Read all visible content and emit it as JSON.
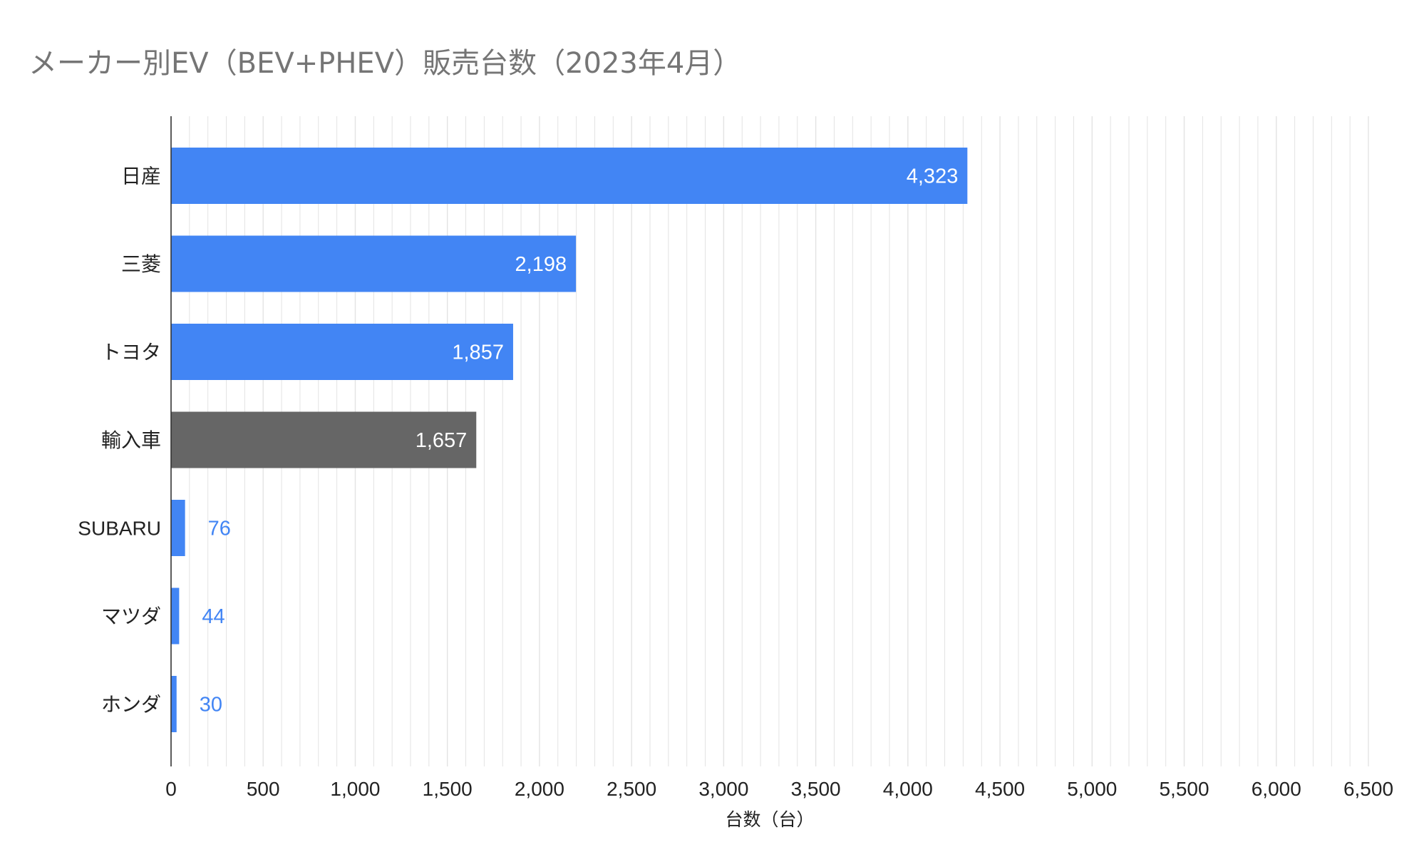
{
  "chart_data": {
    "type": "bar",
    "orientation": "horizontal",
    "title": "メーカー別EV（BEV+PHEV）販売台数（2023年4月）",
    "xlabel": "台数（台）",
    "ylabel": "",
    "xlim": [
      0,
      6500
    ],
    "x_ticks": [
      0,
      500,
      1000,
      1500,
      2000,
      2500,
      3000,
      3500,
      4000,
      4500,
      5000,
      5500,
      6000,
      6500
    ],
    "x_tick_labels": [
      "0",
      "500",
      "1,000",
      "1,500",
      "2,000",
      "2,500",
      "3,000",
      "3,500",
      "4,000",
      "4,500",
      "5,000",
      "5,500",
      "6,000",
      "6,500"
    ],
    "minor_grid_step": 100,
    "grid": true,
    "categories": [
      "日産",
      "三菱",
      "トヨタ",
      "輸入車",
      "SUBARU",
      "マツダ",
      "ホンダ"
    ],
    "values": [
      4323,
      2198,
      1857,
      1657,
      76,
      44,
      30
    ],
    "value_labels": [
      "4,323",
      "2,198",
      "1,857",
      "1,657",
      "76",
      "44",
      "30"
    ],
    "bar_colors": [
      "#4285f4",
      "#4285f4",
      "#4285f4",
      "#666666",
      "#4285f4",
      "#4285f4",
      "#4285f4"
    ],
    "label_color_inside": "#ffffff",
    "label_color_outside": "#4285f4",
    "grid_color": "#e3e3e3",
    "axis_color": "#333333"
  }
}
